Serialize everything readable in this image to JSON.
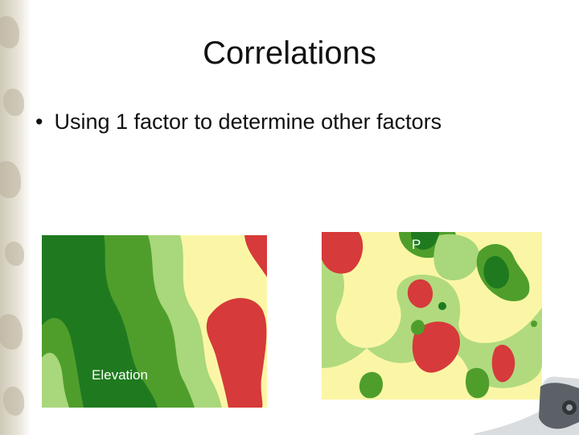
{
  "slide": {
    "title": "Correlations",
    "bullet": "Using 1 factor to determine other factors"
  },
  "maps": [
    {
      "label": "Elevation"
    },
    {
      "label": "P"
    }
  ],
  "colors": {
    "dark_green": "#1f7a1f",
    "mid_green": "#4f9e2c",
    "light_green": "#a9d77b",
    "yellow": "#fbf6a6",
    "red": "#d63a3a"
  }
}
